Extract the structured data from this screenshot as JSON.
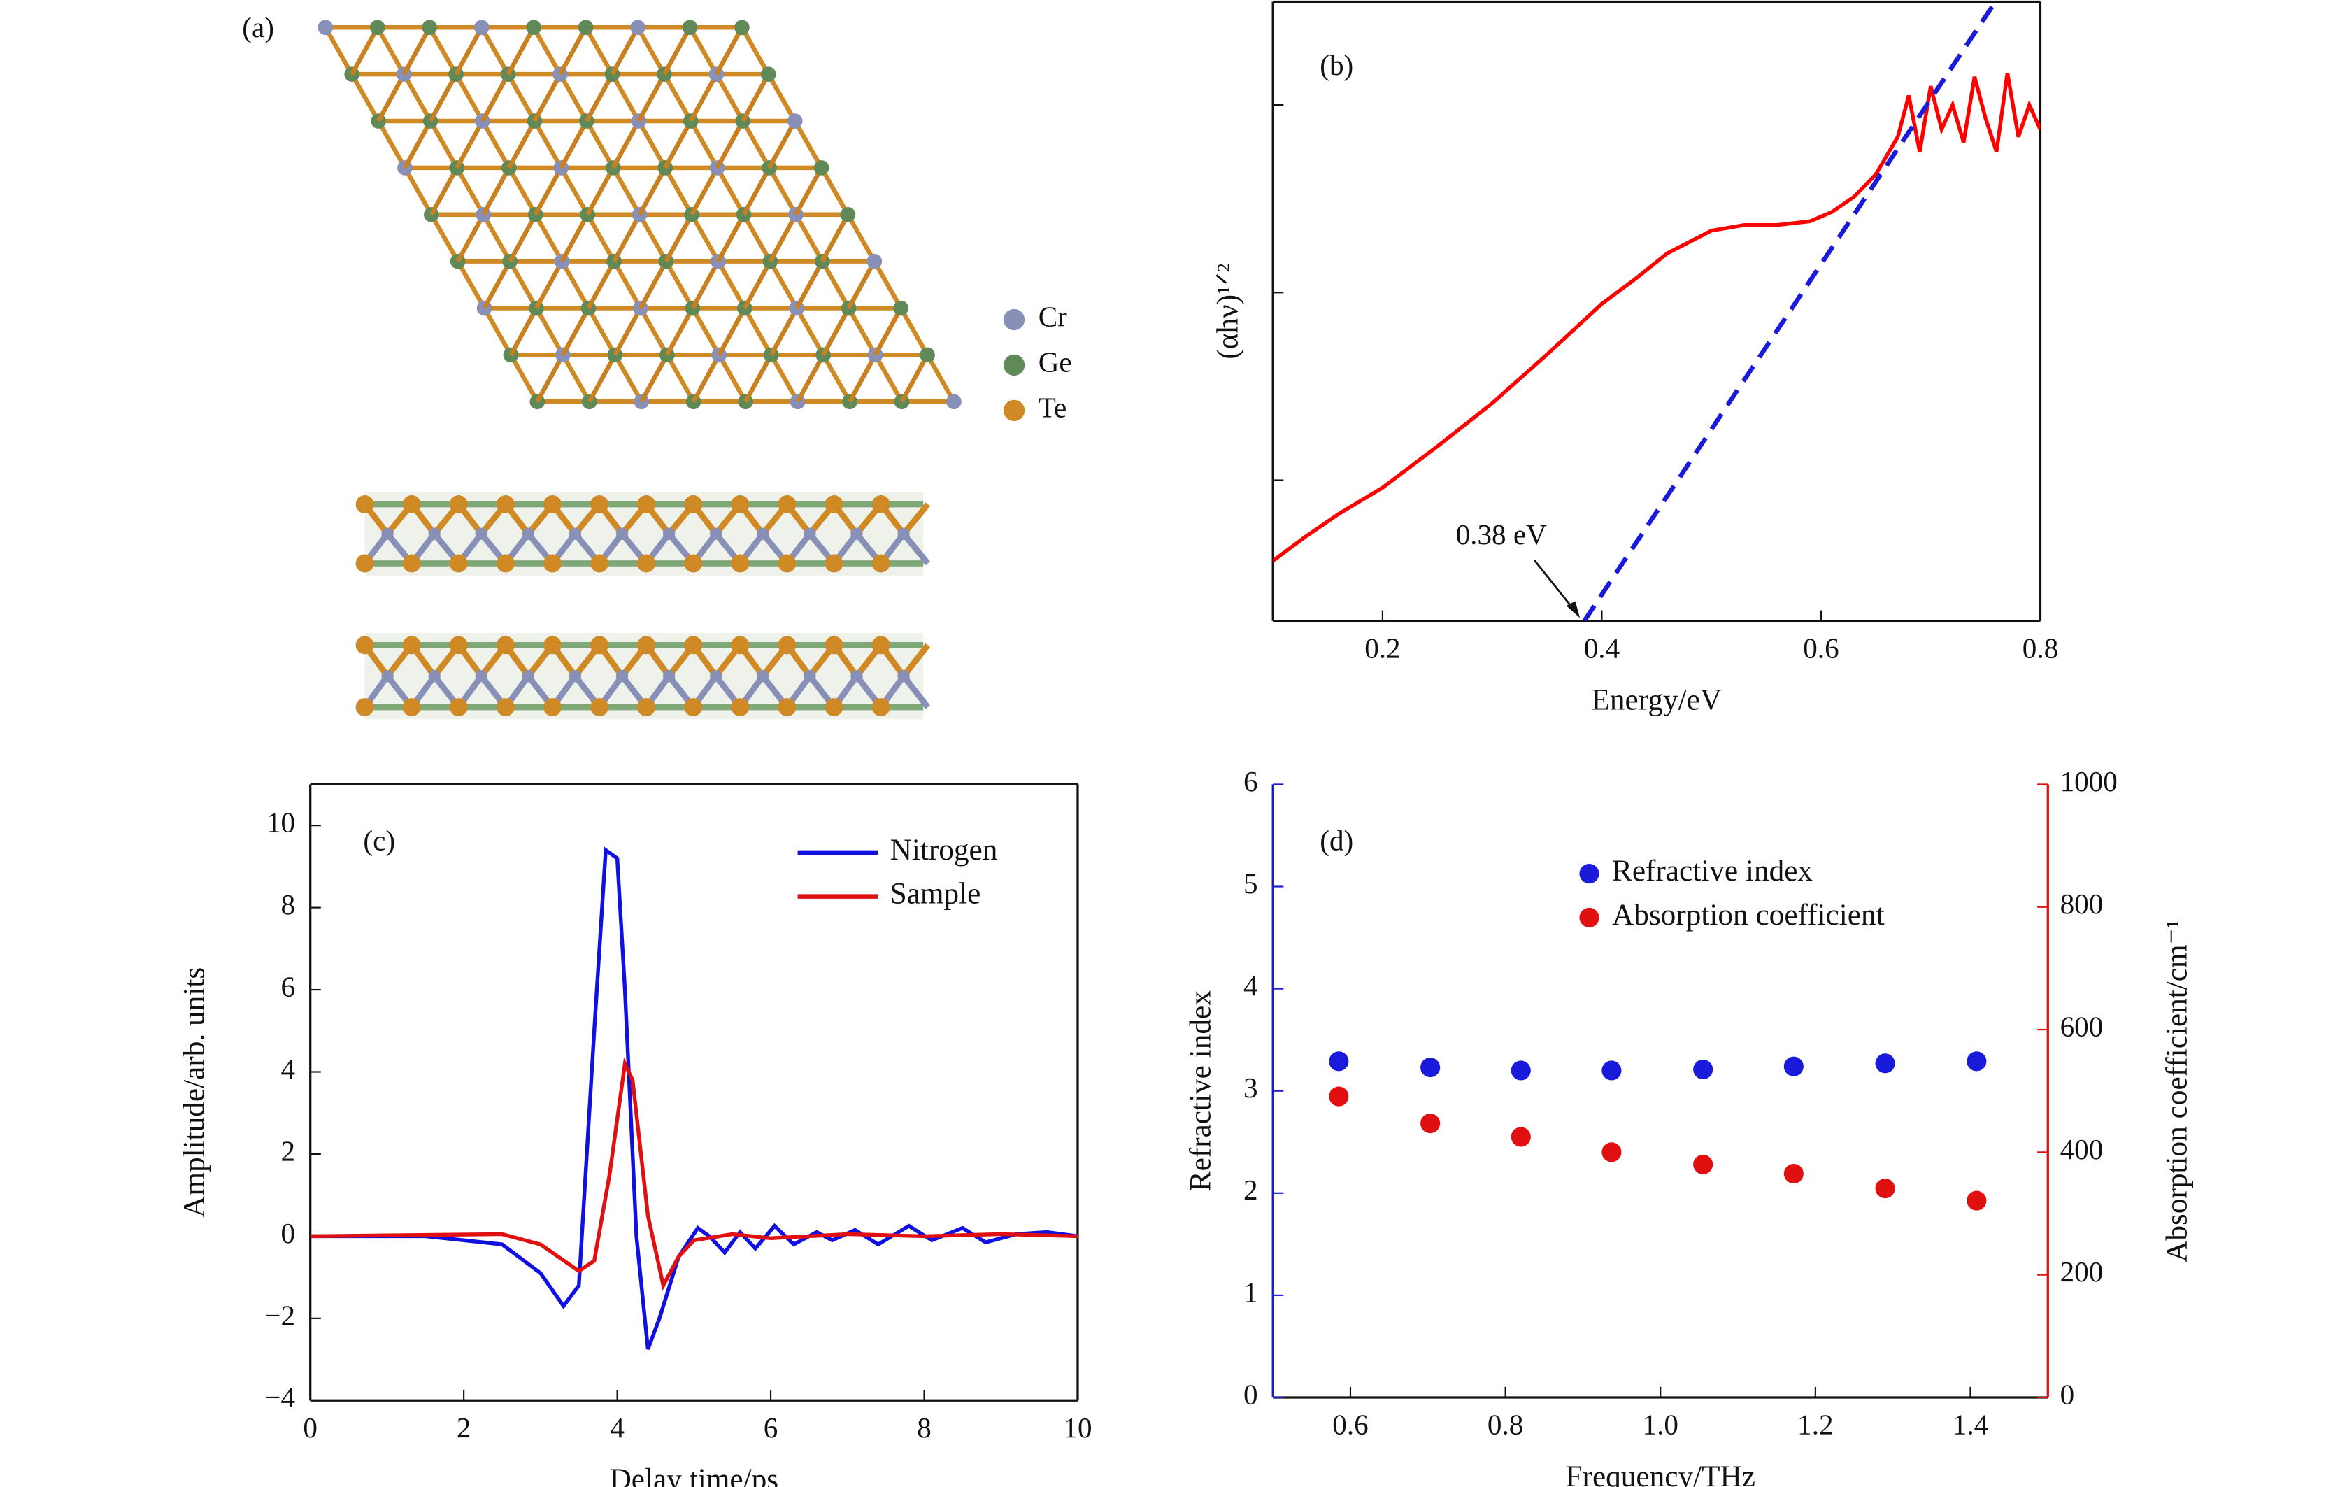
{
  "panel_a": {
    "label": "(a)",
    "legend": [
      {
        "name": "Cr",
        "color": "#8890b8"
      },
      {
        "name": "Ge",
        "color": "#5f8a58"
      },
      {
        "name": "Te",
        "color": "#d08a25"
      }
    ]
  },
  "chart_data": [
    {
      "type": "line",
      "label": "(b)",
      "xlabel": "Energy/eV",
      "ylabel": "(αhν)¹ᐟ²",
      "xlim": [
        0.1,
        0.8
      ],
      "xticks": [
        0.2,
        0.4,
        0.6,
        0.8
      ],
      "ylim": [
        0,
        330
      ],
      "yticks": [
        75,
        175,
        275
      ],
      "show_ytick_labels": false,
      "annotation": {
        "text": "0.38 eV",
        "x": 0.38,
        "y": 0
      },
      "series": [
        {
          "color": "#ff0000",
          "dash": false,
          "x": [
            0.1,
            0.13,
            0.16,
            0.2,
            0.25,
            0.3,
            0.35,
            0.4,
            0.43,
            0.46,
            0.5,
            0.53,
            0.56,
            0.59,
            0.61,
            0.63,
            0.65,
            0.67,
            0.68,
            0.69,
            0.7,
            0.71,
            0.72,
            0.73,
            0.74,
            0.75,
            0.76,
            0.77,
            0.78,
            0.79,
            0.8
          ],
          "values": [
            32,
            45,
            57,
            71,
            93,
            116,
            142,
            169,
            182,
            196,
            208,
            211,
            211,
            213,
            218,
            226,
            238,
            258,
            280,
            250,
            285,
            262,
            275,
            255,
            290,
            268,
            250,
            292,
            258,
            275,
            262
          ]
        },
        {
          "color": "#1a1adb",
          "dash": true,
          "x": [
            0.384,
            0.759
          ],
          "values": [
            0,
            330
          ]
        }
      ]
    },
    {
      "type": "line",
      "label": "(c)",
      "xlabel": "Delay time/ps",
      "ylabel": "Amplitude/arb. units",
      "xlim": [
        0,
        10
      ],
      "xticks": [
        0,
        2,
        4,
        6,
        8,
        10
      ],
      "ylim": [
        -4,
        11
      ],
      "yticks": [
        {
          "value": -4,
          "label": "−4"
        },
        {
          "value": -2,
          "label": "−2"
        },
        0,
        2,
        4,
        6,
        8,
        10
      ],
      "legend": "upper right",
      "series": [
        {
          "name": "Nitrogen",
          "color": "#1010e0",
          "x": [
            0,
            1.5,
            2.5,
            3,
            3.3,
            3.5,
            3.7,
            3.85,
            4,
            4.1,
            4.25,
            4.4,
            4.55,
            4.8,
            5.05,
            5.2,
            5.4,
            5.6,
            5.8,
            6.05,
            6.3,
            6.6,
            6.8,
            7.1,
            7.4,
            7.8,
            8.1,
            8.5,
            8.8,
            9.2,
            9.6,
            10
          ],
          "values": [
            0,
            0,
            -0.2,
            -0.9,
            -1.7,
            -1.2,
            5,
            9.4,
            9.2,
            6,
            0,
            -2.75,
            -2,
            -0.5,
            0.2,
            0,
            -0.4,
            0.1,
            -0.3,
            0.25,
            -0.2,
            0.1,
            -0.1,
            0.15,
            -0.2,
            0.25,
            -0.1,
            0.2,
            -0.15,
            0.05,
            0.1,
            0
          ]
        },
        {
          "name": "Sample",
          "color": "#e01010",
          "x": [
            0,
            2.5,
            3,
            3.5,
            3.7,
            3.9,
            4.1,
            4.2,
            4.4,
            4.6,
            4.8,
            5,
            5.5,
            6,
            7,
            8,
            9,
            10
          ],
          "values": [
            0,
            0.05,
            -0.2,
            -0.85,
            -0.6,
            1.5,
            4.2,
            3.8,
            0.5,
            -1.2,
            -0.5,
            -0.1,
            0.05,
            -0.05,
            0.05,
            0,
            0.05,
            0
          ]
        }
      ]
    },
    {
      "type": "scatter",
      "label": "(d)",
      "xlabel": "Frequency/THz",
      "ylabel": "Refractive index",
      "y2label": "Absorption coefficient/cm⁻¹",
      "xlim": [
        0.5,
        1.5
      ],
      "xticks": [
        0.6,
        0.8,
        {
          "value": 1,
          "label": "1.0"
        },
        1.2,
        1.4
      ],
      "ylim": [
        0,
        6
      ],
      "yticks": [
        0,
        1,
        2,
        3,
        4,
        5,
        6
      ],
      "ycolor": "#1a1adb",
      "y2lim": [
        0,
        1000
      ],
      "y2ticks": [
        0,
        200,
        400,
        600,
        800,
        1000
      ],
      "y2color": "#e01010",
      "legend": "upper right",
      "series": [
        {
          "name": "Refractive index",
          "color": "#1a1adb",
          "x": [
            0.585,
            0.703,
            0.82,
            0.937,
            1.055,
            1.172,
            1.29,
            1.408
          ],
          "values": [
            3.29,
            3.23,
            3.2,
            3.2,
            3.21,
            3.24,
            3.27,
            3.29
          ]
        },
        {
          "name": "Absorption coefficient",
          "color": "#e01010",
          "axis": "y2",
          "x": [
            0.585,
            0.703,
            0.82,
            0.937,
            1.055,
            1.172,
            1.29,
            1.408
          ],
          "values": [
            491,
            447,
            425,
            400,
            380,
            365,
            341,
            321
          ]
        }
      ]
    }
  ]
}
